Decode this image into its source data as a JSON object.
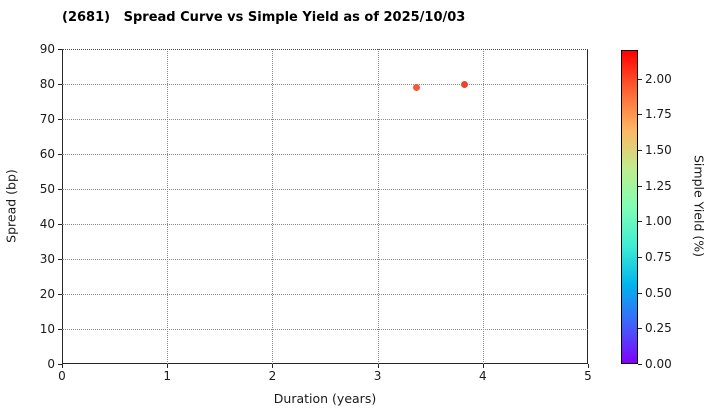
{
  "chart_data": {
    "type": "scatter",
    "title": "(2681)   Spread Curve vs Simple Yield as of 2025/10/03",
    "xlabel": "Duration (years)",
    "ylabel": "Spread (bp)",
    "xlim": [
      0,
      5
    ],
    "ylim": [
      0,
      90
    ],
    "xticks": [
      0,
      1,
      2,
      3,
      4,
      5
    ],
    "yticks": [
      0,
      10,
      20,
      30,
      40,
      50,
      60,
      70,
      80,
      90
    ],
    "grid": {
      "on": true,
      "style": "dotted",
      "color": "#8a8a8a"
    },
    "legend": "none",
    "points": [
      {
        "duration": 3.37,
        "spread": 79,
        "simple_yield": 1.95,
        "color": "#f25a3a"
      },
      {
        "duration": 3.83,
        "spread": 80,
        "simple_yield": 2.01,
        "color": "#ee4429"
      }
    ],
    "colorbar": {
      "label": "Simple Yield (%)",
      "vmin": 0.0,
      "vmax": 2.2,
      "tick_labels": [
        "0.00",
        "0.25",
        "0.50",
        "0.75",
        "1.00",
        "1.25",
        "1.50",
        "1.75",
        "2.00"
      ],
      "tick_values": [
        0,
        0.25,
        0.5,
        0.75,
        1.0,
        1.25,
        1.5,
        1.75,
        2.0
      ],
      "colormap": "rainbow",
      "gradient_stops_bottom_to_top": [
        "#8000ff",
        "#4062fa",
        "#00b4ec",
        "#40ecd4",
        "#80ffb4",
        "#bfec8e",
        "#ffb462",
        "#ff6232",
        "#ff0000"
      ]
    }
  }
}
